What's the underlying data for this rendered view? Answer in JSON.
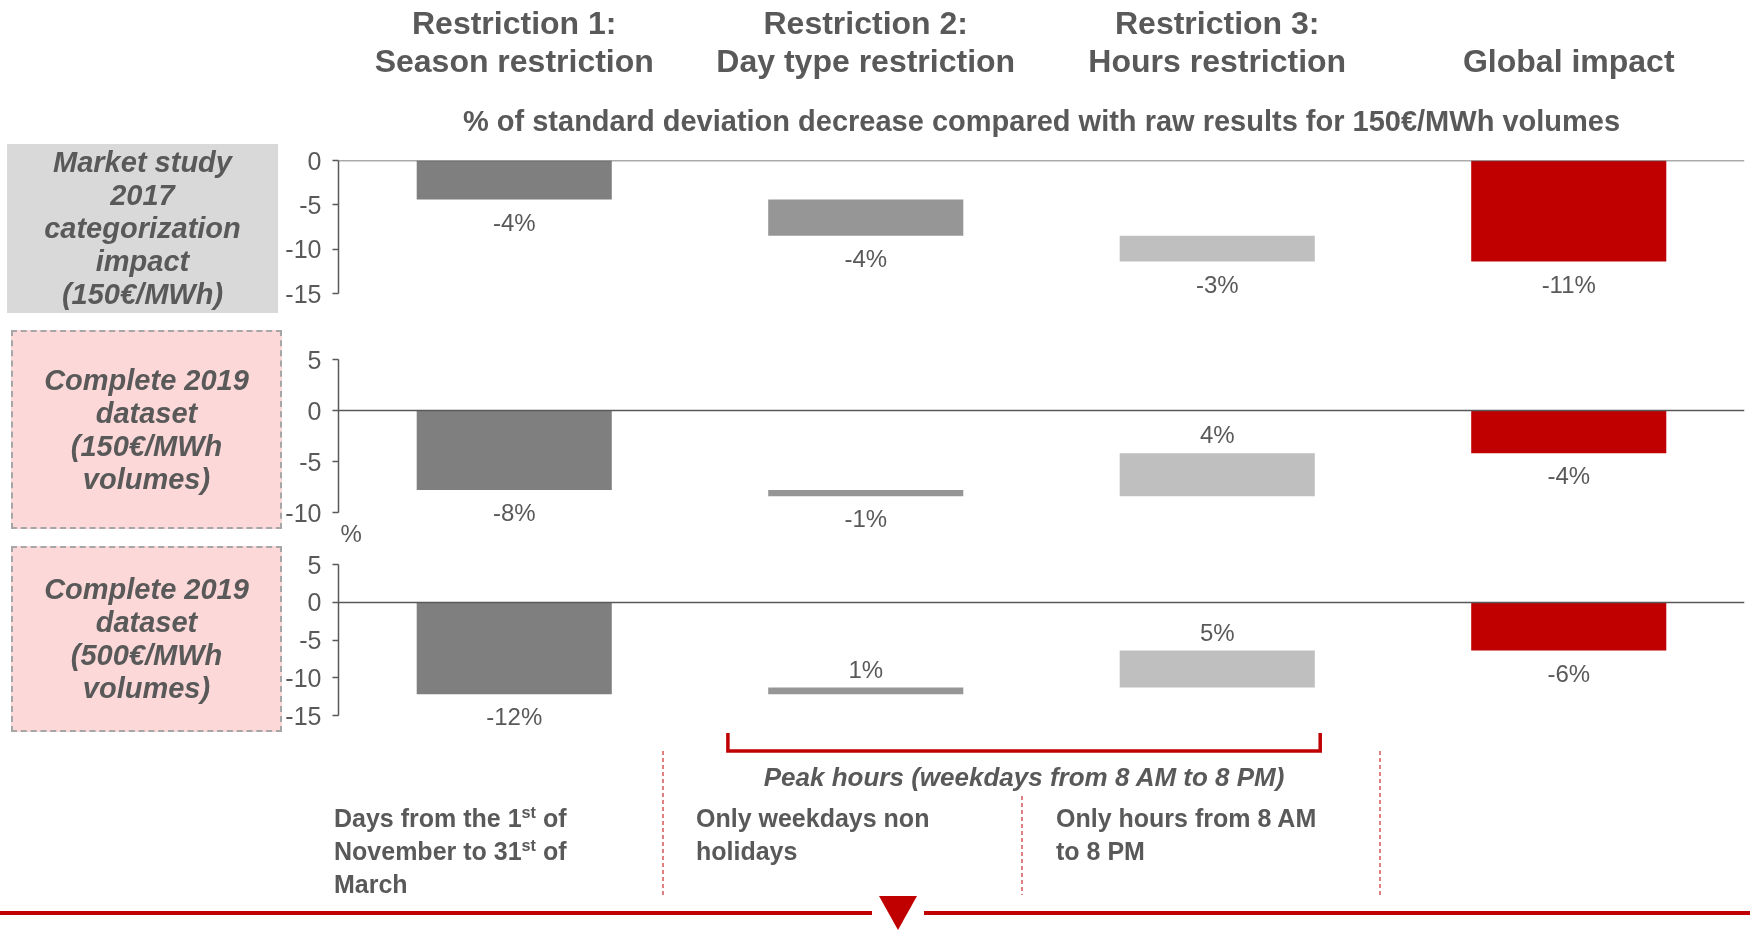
{
  "chart_data": [
    {
      "type": "bar",
      "title": "Market study 2017 categorization impact (150€/MWh)",
      "subtitle": "% of standard deviation decrease compared with raw results for 150€/MWh volumes",
      "categories": [
        "Restriction 1:\nSeason restriction",
        "Restriction 2:\nDay type restriction",
        "Restriction 3:\nHours restriction",
        "Global impact"
      ],
      "values": [
        -4.4,
        -4.1,
        -2.9,
        -11.4
      ],
      "base": [
        0,
        -4.4,
        -8.5,
        0
      ],
      "colors": [
        "#7f7f7f",
        "#969696",
        "#bfbfbf",
        "#c00000"
      ],
      "value_labels": [
        "-4%",
        "-4%",
        "-3%",
        "-11%"
      ],
      "ylim": [
        -15,
        0
      ],
      "yticks": [
        0,
        -5,
        -10,
        -15
      ]
    },
    {
      "type": "bar",
      "title": "Complete 2019 dataset (150€/MWh volumes)",
      "annotations": [
        "%"
      ],
      "categories": [
        null,
        null,
        null,
        null
      ],
      "values": [
        -7.8,
        -0.6,
        4.2,
        -4.2
      ],
      "base": [
        0,
        -7.8,
        -8.4,
        0
      ],
      "colors": [
        "#7f7f7f",
        "#969696",
        "#bfbfbf",
        "#c00000"
      ],
      "value_labels": [
        "-8%",
        "-1%",
        "4%",
        "-4%"
      ],
      "ylim": [
        -10,
        5
      ],
      "yticks": [
        5,
        0,
        -5,
        -10
      ]
    },
    {
      "type": "bar",
      "title": "Complete 2019 dataset (500€/MWh volumes)",
      "categories": [
        null,
        null,
        null,
        null
      ],
      "values": [
        -12.2,
        0.9,
        4.9,
        -6.4
      ],
      "base": [
        0,
        -12.2,
        -11.3,
        0
      ],
      "colors": [
        "#7f7f7f",
        "#969696",
        "#bfbfbf",
        "#c00000"
      ],
      "value_labels": [
        "-12%",
        "1%",
        "5%",
        "-6%"
      ],
      "ylim": [
        -15,
        5
      ],
      "yticks": [
        5,
        0,
        -5,
        -10,
        -15
      ],
      "annotations": [
        "Peak hours (weekdays from 8 AM to 8 PM)",
        "Days from the 1$^{st}$ of November to 31$^{st}$ of March",
        "Only weekdays non holidays",
        "Only hours from 8 AM to 8 PM"
      ]
    }
  ]
}
